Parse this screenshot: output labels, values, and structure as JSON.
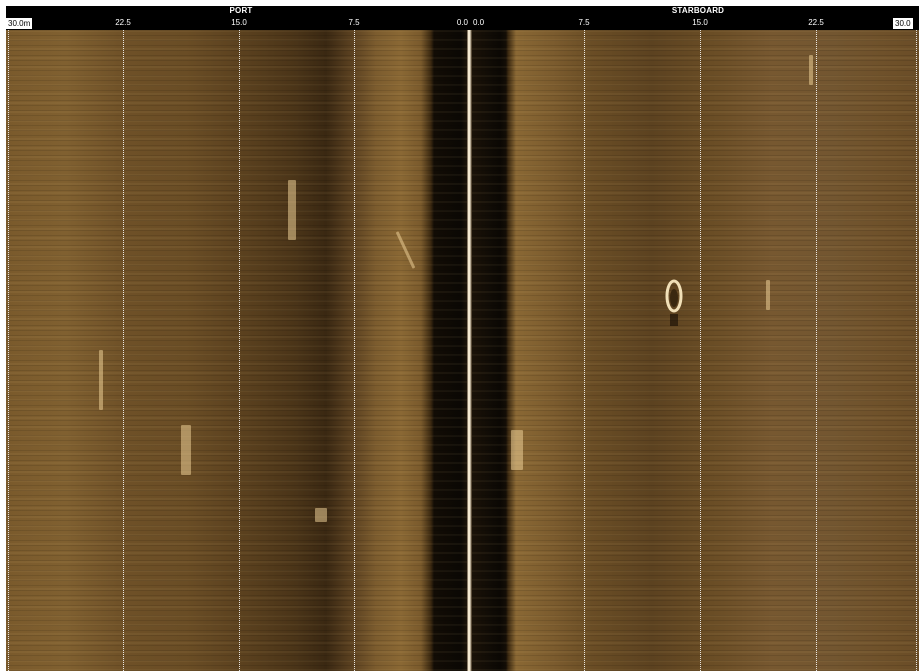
{
  "range_bar": {
    "port_title": "PORT",
    "starboard_title": "STARBOARD",
    "port_max_label": "30.0m",
    "starboard_max_label": "30.0",
    "port_ticks": [
      "22.5",
      "15.0",
      "7.5",
      "0.0"
    ],
    "starboard_ticks": [
      "0.0",
      "7.5",
      "15.0",
      "22.5"
    ]
  },
  "colors": {
    "header_bg": "#000000",
    "header_text": "#ffffff",
    "sonar_palette": "sepia-brown",
    "grid_lines": "#ffffff"
  },
  "sonar_view": {
    "range_m": 30.0,
    "grid_interval_m": 7.5,
    "nadir_marker": "center-line"
  }
}
